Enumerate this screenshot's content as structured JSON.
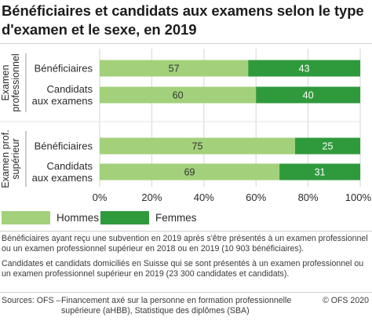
{
  "title": "Bénéficiaires et candidats aux examens selon le type d'examen et le sexe, en 2019",
  "chart_data": {
    "type": "bar",
    "orientation": "horizontal",
    "stacked": true,
    "percent_scale": true,
    "groups": [
      {
        "label_lines": [
          "Examen",
          "professionnel"
        ],
        "bars": [
          {
            "label_lines": [
              "Bénéficiaires"
            ],
            "values": [
              57,
              43
            ]
          },
          {
            "label_lines": [
              "Candidats",
              "aux examens"
            ],
            "values": [
              60,
              40
            ]
          }
        ]
      },
      {
        "label_lines": [
          "Examen prof.",
          "supérieur"
        ],
        "bars": [
          {
            "label_lines": [
              "Bénéficiaires"
            ],
            "values": [
              75,
              25
            ]
          },
          {
            "label_lines": [
              "Candidats",
              "aux examens"
            ],
            "values": [
              69,
              31
            ]
          }
        ]
      }
    ],
    "series": [
      {
        "name": "Hommes",
        "color": "#a3d17b"
      },
      {
        "name": "Femmes",
        "color": "#2f9a3c"
      }
    ],
    "xlim": [
      0,
      100
    ],
    "xticks": [
      "0%",
      "20%",
      "40%",
      "60%",
      "80%",
      "100%"
    ],
    "grid": true,
    "legend_position": "bottom-left"
  },
  "notes": [
    "Bénéficiaires ayant reçu une subvention en 2019 après s'être présentés à un examen professionnel ou un examen professionnel supérieur en 2018 ou en 2019 (10 903 bénéficiaires).",
    "Candidates et candidats domiciliés en Suisse qui se sont présentés à un examen professionnel ou un examen professionnel supérieur en 2019 (23 300 candidates et candidats)."
  ],
  "source": {
    "prefix": "Sources: OFS –",
    "body": "Financement axé sur la personne en formation professionnelle supérieure (aHBB), Statistique des diplômes (SBA)"
  },
  "copyright": "© OFS 2020"
}
